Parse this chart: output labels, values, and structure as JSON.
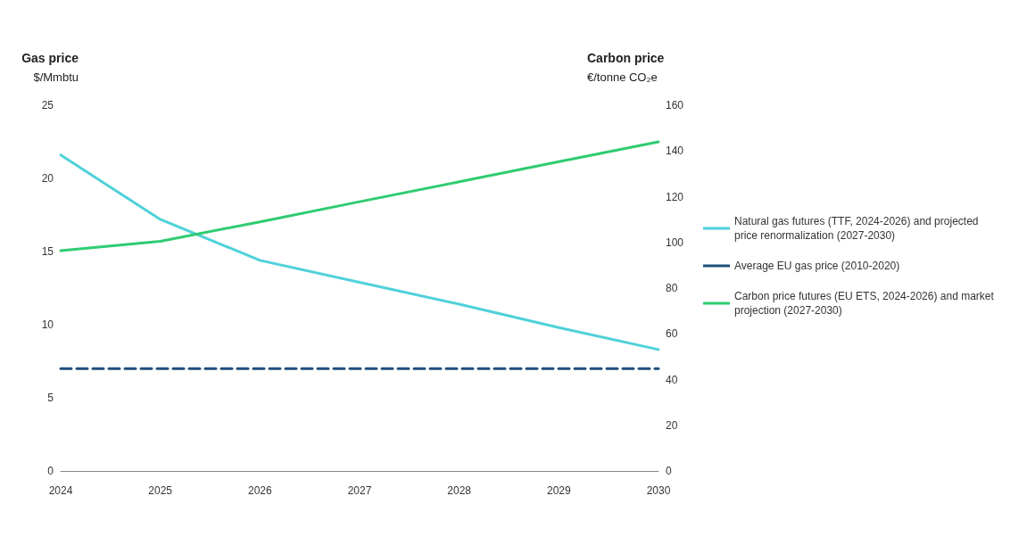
{
  "chart_data": {
    "type": "line",
    "categories": [
      "2024",
      "2025",
      "2026",
      "2027",
      "2028",
      "2029",
      "2030"
    ],
    "ylabel": "Gas price\n$/Mmbtu",
    "y2label": "Carbon price\n€/tonne CO₂e",
    "ylim": [
      0,
      25
    ],
    "yticks": [
      0,
      5,
      10,
      15,
      20,
      25
    ],
    "y2lim": [
      0,
      160
    ],
    "y2ticks": [
      0,
      20,
      40,
      60,
      80,
      100,
      120,
      140,
      160
    ],
    "grid": false,
    "legend": "right",
    "marker": "none",
    "series": [
      {
        "name": "Natural gas futures (TTF, 2024-2026) and projected price renormalization (2027-2030)",
        "color": "#4fd1d9",
        "values": [
          21.6,
          17.2,
          14.4,
          12.9,
          11.4,
          9.8,
          8.3
        ]
      },
      {
        "name": "Average EU gas price (2010-2020)",
        "color": "#1f4e79",
        "line_style": "dashed",
        "values": [
          7,
          7,
          7,
          7,
          7,
          7,
          7
        ]
      },
      {
        "name": "Carbon price futures (EU ETS, 2024-2026) and market projection (2027-2030)",
        "color": "#2ecc71",
        "axis": "y2",
        "values": [
          96.4,
          100.5,
          109,
          117.8,
          126.5,
          135.3,
          144
        ]
      }
    ]
  }
}
